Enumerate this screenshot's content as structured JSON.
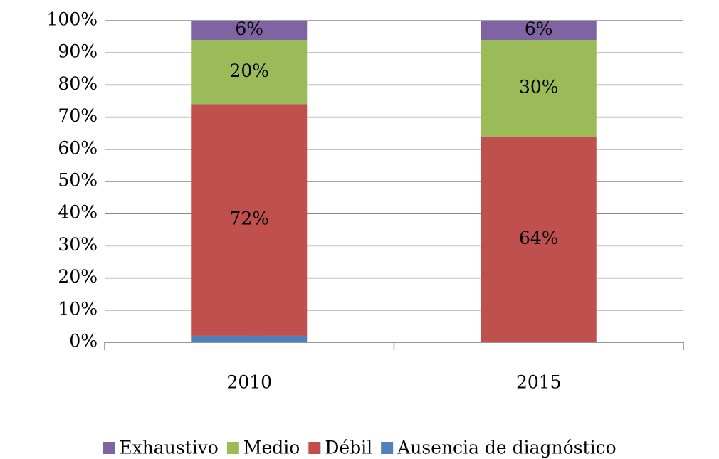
{
  "chart_data": {
    "type": "stacked-bar",
    "categories": [
      "2010",
      "2015"
    ],
    "series": [
      {
        "name": "Ausencia de diagnóstico",
        "color": "#4f81bd",
        "values": [
          2,
          0
        ],
        "value_labels": [
          "2%",
          null
        ]
      },
      {
        "name": "Débil",
        "color": "#c0504d",
        "values": [
          72,
          64
        ],
        "value_labels": [
          "72%",
          "64%"
        ]
      },
      {
        "name": "Medio",
        "color": "#9bbb59",
        "values": [
          20,
          30
        ],
        "value_labels": [
          "20%",
          "30%"
        ]
      },
      {
        "name": "Exhaustivo",
        "color": "#8064a2",
        "values": [
          6,
          6
        ],
        "value_labels": [
          "6%",
          "6%"
        ]
      }
    ],
    "ylim": [
      0,
      100
    ],
    "yticks": [
      {
        "value": 0,
        "label": "0%"
      },
      {
        "value": 10,
        "label": "10%"
      },
      {
        "value": 20,
        "label": "20%"
      },
      {
        "value": 30,
        "label": "30%"
      },
      {
        "value": 40,
        "label": "40%"
      },
      {
        "value": 50,
        "label": "50%"
      },
      {
        "value": 60,
        "label": "60%"
      },
      {
        "value": 70,
        "label": "70%"
      },
      {
        "value": 80,
        "label": "80%"
      },
      {
        "value": 90,
        "label": "90%"
      },
      {
        "value": 100,
        "label": "100%"
      }
    ],
    "grid": true,
    "legend": "bottom"
  }
}
